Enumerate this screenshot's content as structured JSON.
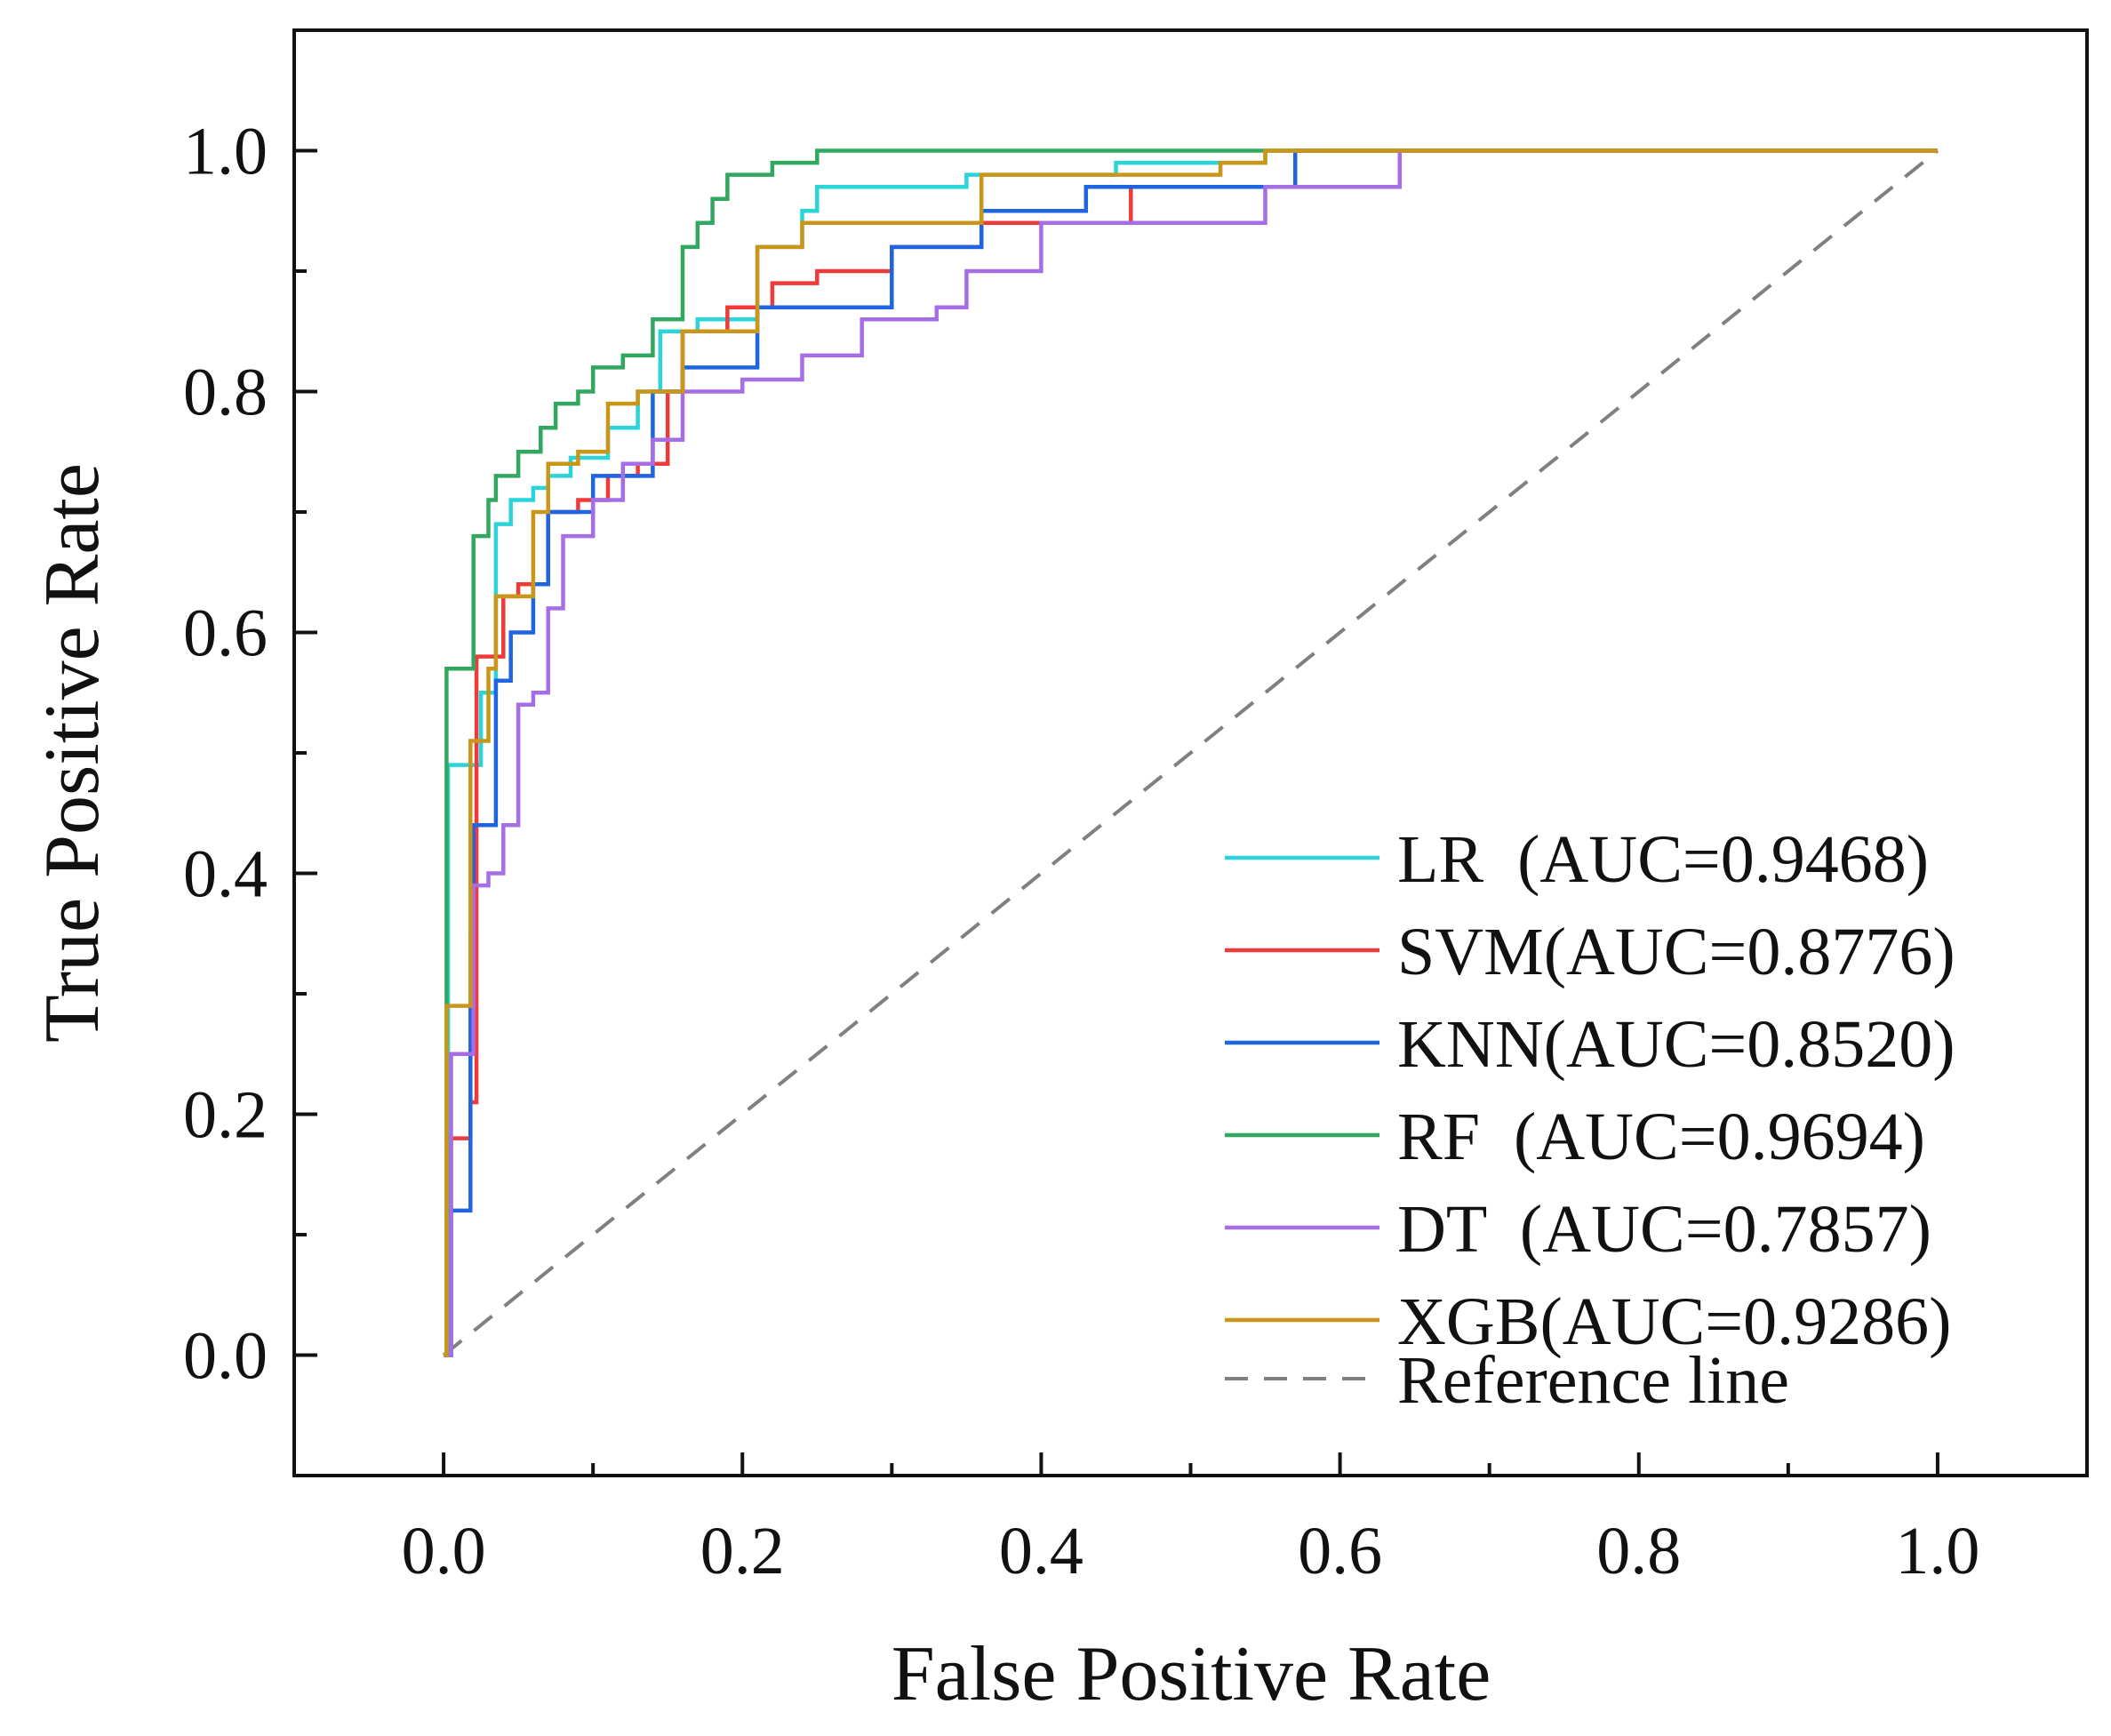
{
  "chart_data": {
    "type": "line",
    "title": "",
    "xlabel": "False Positive Rate",
    "ylabel": "True Positive Rate",
    "xlim": [
      -0.1,
      1.1
    ],
    "ylim": [
      -0.1,
      1.1
    ],
    "xticks": [
      "0.0",
      "0.2",
      "0.4",
      "0.6",
      "0.8",
      "1.0"
    ],
    "yticks": [
      "0.0",
      "0.2",
      "0.4",
      "0.6",
      "0.8",
      "1.0"
    ],
    "xtick_values": [
      0,
      0.2,
      0.4,
      0.6,
      0.8,
      1.0
    ],
    "ytick_values": [
      0,
      0.2,
      0.4,
      0.6,
      0.8,
      1.0
    ],
    "grid": false,
    "legend_position": "bottom-right",
    "series": [
      {
        "name": "LR",
        "legend": "LR  (AUC=0.9468)",
        "color": "#2ad4d8",
        "x": [
          0,
          0.003,
          0.003,
          0.025,
          0.025,
          0.035,
          0.035,
          0.045,
          0.045,
          0.06,
          0.06,
          0.07,
          0.07,
          0.085,
          0.085,
          0.11,
          0.11,
          0.13,
          0.13,
          0.145,
          0.145,
          0.17,
          0.17,
          0.2,
          0.2,
          0.21,
          0.21,
          0.24,
          0.24,
          0.25,
          0.25,
          0.35,
          0.35,
          0.45,
          0.45,
          0.55,
          0.55,
          1.0
        ],
        "y": [
          0,
          0,
          0.49,
          0.49,
          0.55,
          0.55,
          0.69,
          0.69,
          0.71,
          0.71,
          0.72,
          0.72,
          0.73,
          0.73,
          0.745,
          0.745,
          0.77,
          0.77,
          0.8,
          0.8,
          0.85,
          0.85,
          0.86,
          0.86,
          0.86,
          0.86,
          0.92,
          0.92,
          0.95,
          0.95,
          0.97,
          0.97,
          0.98,
          0.98,
          0.99,
          0.99,
          1.0,
          1.0
        ]
      },
      {
        "name": "SVM",
        "legend": "SVM(AUC=0.8776)",
        "color": "#f03a3a",
        "x": [
          0,
          0.005,
          0.005,
          0.018,
          0.018,
          0.022,
          0.022,
          0.03,
          0.03,
          0.04,
          0.04,
          0.05,
          0.05,
          0.07,
          0.07,
          0.09,
          0.09,
          0.11,
          0.11,
          0.13,
          0.13,
          0.15,
          0.15,
          0.16,
          0.16,
          0.19,
          0.19,
          0.22,
          0.22,
          0.25,
          0.25,
          0.3,
          0.3,
          0.36,
          0.36,
          0.46,
          0.46,
          0.57,
          0.57,
          1.0
        ],
        "y": [
          0,
          0,
          0.18,
          0.18,
          0.21,
          0.21,
          0.58,
          0.58,
          0.58,
          0.58,
          0.63,
          0.63,
          0.64,
          0.64,
          0.7,
          0.7,
          0.71,
          0.71,
          0.73,
          0.73,
          0.74,
          0.74,
          0.8,
          0.8,
          0.85,
          0.85,
          0.87,
          0.87,
          0.89,
          0.89,
          0.9,
          0.9,
          0.92,
          0.92,
          0.94,
          0.94,
          0.97,
          0.97,
          1.0,
          1.0
        ]
      },
      {
        "name": "KNN",
        "legend": "KNN(AUC=0.8520)",
        "color": "#1f64e0",
        "x": [
          0,
          0.005,
          0.005,
          0.018,
          0.018,
          0.02,
          0.02,
          0.03,
          0.03,
          0.035,
          0.035,
          0.045,
          0.045,
          0.06,
          0.06,
          0.07,
          0.07,
          0.1,
          0.1,
          0.14,
          0.14,
          0.16,
          0.16,
          0.21,
          0.21,
          0.27,
          0.27,
          0.3,
          0.3,
          0.36,
          0.36,
          0.43,
          0.43,
          0.57,
          0.57,
          1.0
        ],
        "y": [
          0,
          0,
          0.12,
          0.12,
          0.35,
          0.35,
          0.44,
          0.44,
          0.44,
          0.44,
          0.56,
          0.56,
          0.6,
          0.6,
          0.64,
          0.64,
          0.7,
          0.7,
          0.73,
          0.73,
          0.8,
          0.8,
          0.82,
          0.82,
          0.87,
          0.87,
          0.87,
          0.87,
          0.92,
          0.92,
          0.95,
          0.95,
          0.97,
          0.97,
          1.0,
          1.0
        ]
      },
      {
        "name": "RF",
        "legend": "RF  (AUC=0.9694)",
        "color": "#30a860",
        "x": [
          0,
          0.002,
          0.002,
          0.015,
          0.015,
          0.02,
          0.02,
          0.03,
          0.03,
          0.035,
          0.035,
          0.05,
          0.05,
          0.065,
          0.065,
          0.075,
          0.075,
          0.09,
          0.09,
          0.1,
          0.1,
          0.12,
          0.12,
          0.14,
          0.14,
          0.16,
          0.16,
          0.17,
          0.17,
          0.18,
          0.18,
          0.19,
          0.19,
          0.21,
          0.21,
          0.22,
          0.22,
          0.25,
          0.25,
          0.36,
          0.36,
          0.55,
          0.55,
          1.0
        ],
        "y": [
          0,
          0,
          0.57,
          0.57,
          0.57,
          0.57,
          0.68,
          0.68,
          0.71,
          0.71,
          0.73,
          0.73,
          0.75,
          0.75,
          0.77,
          0.77,
          0.79,
          0.79,
          0.8,
          0.8,
          0.82,
          0.82,
          0.83,
          0.83,
          0.86,
          0.86,
          0.92,
          0.92,
          0.94,
          0.94,
          0.96,
          0.96,
          0.98,
          0.98,
          0.98,
          0.98,
          0.99,
          0.99,
          1.0,
          1.0,
          1.0,
          1.0,
          1.0,
          1.0
        ]
      },
      {
        "name": "DT",
        "legend": "DT  (AUC=0.7857)",
        "color": "#a66ee6",
        "x": [
          0,
          0.005,
          0.005,
          0.02,
          0.02,
          0.03,
          0.03,
          0.04,
          0.04,
          0.05,
          0.05,
          0.06,
          0.06,
          0.07,
          0.07,
          0.08,
          0.08,
          0.1,
          0.1,
          0.12,
          0.12,
          0.14,
          0.14,
          0.16,
          0.16,
          0.2,
          0.2,
          0.24,
          0.24,
          0.28,
          0.28,
          0.33,
          0.33,
          0.35,
          0.35,
          0.4,
          0.4,
          0.55,
          0.55,
          0.64,
          0.64,
          1.0
        ],
        "y": [
          0,
          0,
          0.25,
          0.25,
          0.39,
          0.39,
          0.4,
          0.4,
          0.44,
          0.44,
          0.54,
          0.54,
          0.55,
          0.55,
          0.62,
          0.62,
          0.68,
          0.68,
          0.71,
          0.71,
          0.74,
          0.74,
          0.76,
          0.76,
          0.8,
          0.8,
          0.81,
          0.81,
          0.83,
          0.83,
          0.86,
          0.86,
          0.87,
          0.87,
          0.9,
          0.9,
          0.94,
          0.94,
          0.97,
          0.97,
          1.0,
          1.0
        ]
      },
      {
        "name": "XGB",
        "legend": "XGB(AUC=0.9286)",
        "color": "#c9961a",
        "x": [
          0,
          0.002,
          0.002,
          0.015,
          0.015,
          0.018,
          0.018,
          0.03,
          0.03,
          0.035,
          0.035,
          0.06,
          0.06,
          0.07,
          0.07,
          0.09,
          0.09,
          0.11,
          0.11,
          0.13,
          0.13,
          0.16,
          0.16,
          0.18,
          0.18,
          0.21,
          0.21,
          0.24,
          0.24,
          0.32,
          0.32,
          0.36,
          0.36,
          0.52,
          0.52,
          0.55,
          0.55,
          1.0
        ],
        "y": [
          0,
          0,
          0.29,
          0.29,
          0.29,
          0.29,
          0.51,
          0.51,
          0.57,
          0.57,
          0.63,
          0.63,
          0.7,
          0.7,
          0.74,
          0.74,
          0.75,
          0.75,
          0.79,
          0.79,
          0.8,
          0.8,
          0.85,
          0.85,
          0.85,
          0.85,
          0.92,
          0.92,
          0.94,
          0.94,
          0.94,
          0.94,
          0.98,
          0.98,
          0.99,
          0.99,
          1.0,
          1.0
        ]
      },
      {
        "name": "Reference line",
        "legend": "Reference line",
        "color": "#808080",
        "dashed": true,
        "x": [
          0,
          1
        ],
        "y": [
          0,
          1
        ]
      }
    ]
  }
}
